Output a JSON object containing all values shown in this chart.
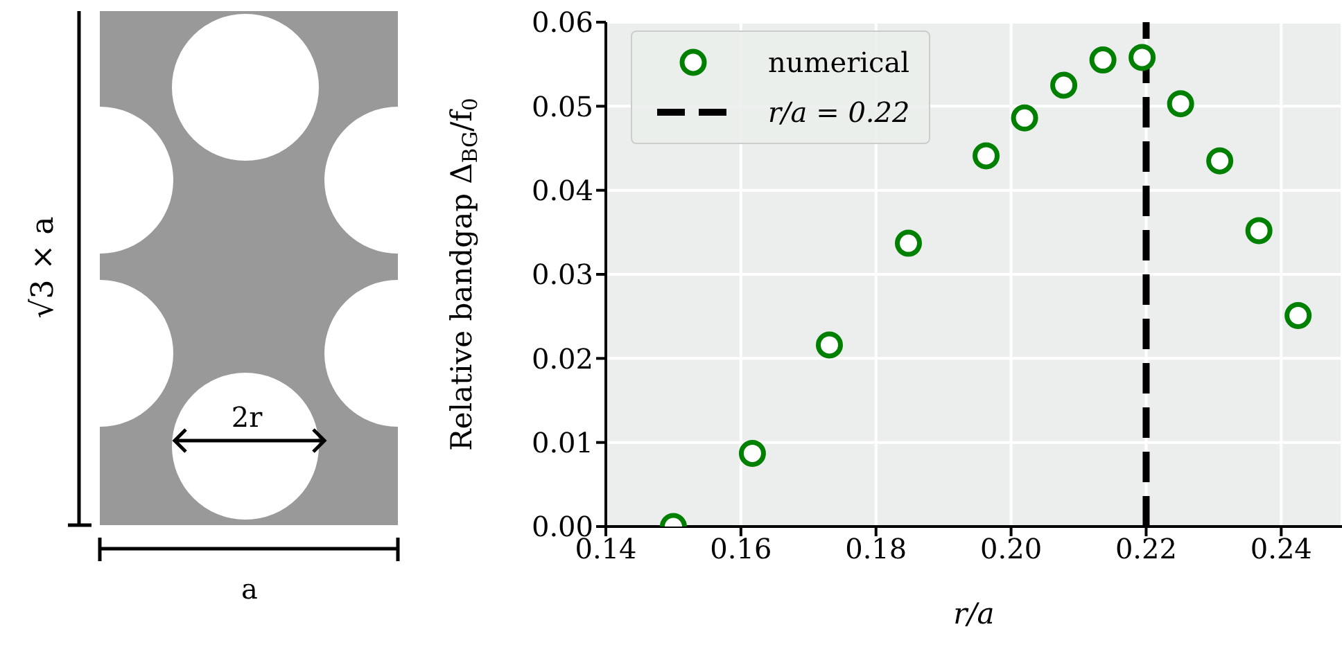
{
  "chart_data": {
    "type": "scatter",
    "xlabel": "r/a",
    "ylabel": "Relative bandgap Δ$_{BG}$/f$_{0}$",
    "x": [
      0.15,
      0.1617,
      0.1731,
      0.1848,
      0.1963,
      0.202,
      0.2078,
      0.2136,
      0.2194,
      0.2251,
      0.2309,
      0.2367,
      0.2425
    ],
    "series": [
      {
        "name": "numerical",
        "color": "#008000",
        "values": [
          0.0,
          0.0087,
          0.0216,
          0.0337,
          0.0441,
          0.0486,
          0.0525,
          0.0555,
          0.0558,
          0.0503,
          0.0435,
          0.0352,
          0.0251
        ]
      }
    ],
    "xlim": [
      0.14,
      0.249
    ],
    "xticks": [
      {
        "value": 0.14,
        "label": "0.14"
      },
      {
        "value": 0.16,
        "label": "0.16"
      },
      {
        "value": 0.18,
        "label": "0.18"
      },
      {
        "value": 0.2,
        "label": "0.20"
      },
      {
        "value": 0.22,
        "label": "0.22"
      },
      {
        "value": 0.24,
        "label": "0.24"
      }
    ],
    "ylim": [
      0,
      0.06
    ],
    "yticks": [
      {
        "value": 0,
        "label": "0.00"
      },
      {
        "value": 0.01,
        "label": "0.01"
      },
      {
        "value": 0.02,
        "label": "0.02"
      },
      {
        "value": 0.03,
        "label": "0.03"
      },
      {
        "value": 0.04,
        "label": "0.04"
      },
      {
        "value": 0.05,
        "label": "0.05"
      },
      {
        "value": 0.06,
        "label": "0.06"
      }
    ],
    "ref_lines": [
      {
        "axis": "x",
        "value": 0.22,
        "label": "r/a = 0.22",
        "color": "#000000",
        "line_style": "dashed"
      }
    ],
    "annotations": [
      "√3 × a",
      "2r",
      "a"
    ],
    "grid": true,
    "legend": "top left",
    "marker": "circle"
  }
}
